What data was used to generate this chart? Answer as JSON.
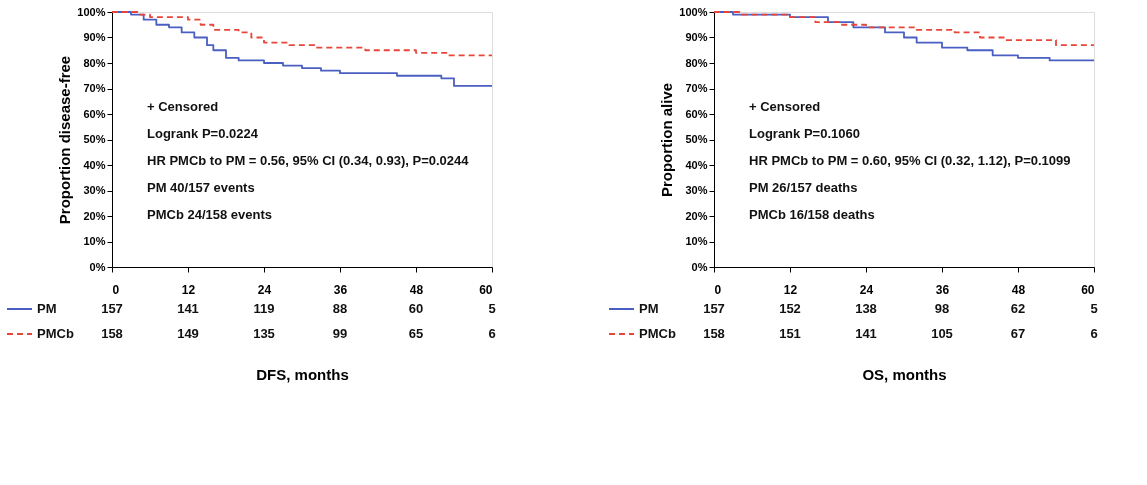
{
  "chart_data": [
    {
      "type": "step",
      "xlabel": "DFS, months",
      "ylabel": "Proportion disease-free",
      "xlim": [
        0,
        60
      ],
      "xticks": [
        0,
        12,
        24,
        36,
        48,
        60
      ],
      "ylim": [
        0,
        100
      ],
      "yticks": [
        {
          "value": 0,
          "label": "0%"
        },
        {
          "value": 10,
          "label": "10%"
        },
        {
          "value": 20,
          "label": "20%"
        },
        {
          "value": 30,
          "label": "30%"
        },
        {
          "value": 40,
          "label": "40%"
        },
        {
          "value": 50,
          "label": "50%"
        },
        {
          "value": 60,
          "label": "60%"
        },
        {
          "value": 70,
          "label": "70%"
        },
        {
          "value": 80,
          "label": "80%"
        },
        {
          "value": 90,
          "label": "90%"
        },
        {
          "value": 100,
          "label": "100%"
        }
      ],
      "grid": false,
      "legend": "bottom left",
      "series": [
        {
          "name": "PM",
          "color": "#4a5fc1",
          "line_style": "solid",
          "x": [
            0,
            3,
            5,
            7,
            9,
            11,
            13,
            15,
            16,
            18,
            20,
            24,
            27,
            30,
            33,
            36,
            40,
            45,
            52,
            54,
            60
          ],
          "values": [
            100,
            99,
            97,
            95,
            94,
            92,
            90,
            87,
            85,
            82,
            81,
            80,
            79,
            78,
            77,
            76,
            76,
            75,
            74,
            71,
            71
          ]
        },
        {
          "name": "PMCb",
          "color": "#e8463a",
          "line_style": "dashed",
          "x": [
            0,
            4,
            6,
            12,
            14,
            16,
            20,
            22,
            24,
            28,
            32,
            40,
            48,
            53,
            60
          ],
          "values": [
            100,
            99,
            98,
            97,
            95,
            93,
            92,
            90,
            88,
            87,
            86,
            85,
            84,
            83,
            83
          ]
        }
      ],
      "annotations": [
        "+ Censored",
        "Logrank P=0.0224",
        "HR PMCb to PM = 0.56, 95% CI (0.34, 0.93), P=0.0244",
        "PM 40/157 events",
        "PMCb 24/158 events",
        "157 141 119 88 60 5",
        "158 149 135 99 65 6"
      ]
    },
    {
      "type": "step",
      "xlabel": "OS, months",
      "ylabel": "Proportion alive",
      "xlim": [
        0,
        60
      ],
      "xticks": [
        0,
        12,
        24,
        36,
        48,
        60
      ],
      "ylim": [
        0,
        100
      ],
      "yticks": [
        {
          "value": 0,
          "label": "0%"
        },
        {
          "value": 10,
          "label": "10%"
        },
        {
          "value": 20,
          "label": "20%"
        },
        {
          "value": 30,
          "label": "30%"
        },
        {
          "value": 40,
          "label": "40%"
        },
        {
          "value": 50,
          "label": "50%"
        },
        {
          "value": 60,
          "label": "60%"
        },
        {
          "value": 70,
          "label": "70%"
        },
        {
          "value": 80,
          "label": "80%"
        },
        {
          "value": 90,
          "label": "90%"
        },
        {
          "value": 100,
          "label": "100%"
        }
      ],
      "grid": false,
      "legend": "bottom left",
      "series": [
        {
          "name": "PM",
          "color": "#4a5fc1",
          "line_style": "solid",
          "x": [
            0,
            3,
            10,
            12,
            18,
            22,
            27,
            30,
            32,
            36,
            40,
            44,
            48,
            53,
            60
          ],
          "values": [
            100,
            99,
            99,
            98,
            96,
            94,
            92,
            90,
            88,
            86,
            85,
            83,
            82,
            81,
            81
          ]
        },
        {
          "name": "PMCb",
          "color": "#e8463a",
          "line_style": "dashed",
          "x": [
            0,
            4,
            12,
            16,
            20,
            24,
            32,
            38,
            42,
            46,
            54,
            60
          ],
          "values": [
            100,
            99,
            98,
            96,
            95,
            94,
            93,
            92,
            90,
            89,
            87,
            87
          ]
        }
      ],
      "annotations": [
        "+ Censored",
        "Logrank P=0.1060",
        "HR PMCb to PM = 0.60, 95% CI (0.32, 1.12), P=0.1099",
        "PM 26/157 deaths",
        "PMCb 16/158 deaths",
        "157 152 138 98 62 5",
        "158 151 141 105 67 6"
      ]
    }
  ]
}
